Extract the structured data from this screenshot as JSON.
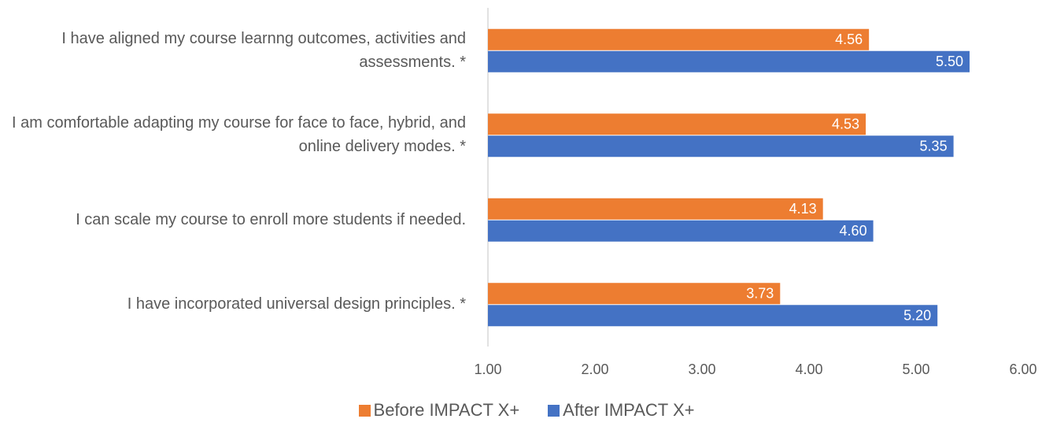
{
  "chart_data": {
    "type": "bar",
    "orientation": "horizontal",
    "categories": [
      "I have aligned my course learnng outcomes, activities and assessments. *",
      "I am comfortable adapting my course for face to face, hybrid, and online delivery modes. *",
      "I can scale my course to enroll more students if needed.",
      "I have incorporated universal design principles. *"
    ],
    "series": [
      {
        "name": "Before IMPACT X+",
        "color": "#ED7D31",
        "values": [
          4.56,
          4.53,
          4.13,
          3.73
        ],
        "value_labels": [
          "4.56",
          "4.53",
          "4.13",
          "3.73"
        ]
      },
      {
        "name": "After IMPACT X+",
        "color": "#4472C4",
        "values": [
          5.5,
          5.35,
          4.6,
          5.2
        ],
        "value_labels": [
          "5.50",
          "5.35",
          "4.60",
          "5.20"
        ]
      }
    ],
    "xlim": [
      1,
      6
    ],
    "xticks": [
      {
        "value": 1,
        "label": "1.00"
      },
      {
        "value": 2,
        "label": "2.00"
      },
      {
        "value": 3,
        "label": "3.00"
      },
      {
        "value": 4,
        "label": "4.00"
      },
      {
        "value": 5,
        "label": "5.00"
      },
      {
        "value": 6,
        "label": "6.00"
      }
    ],
    "legend": "bottom"
  }
}
